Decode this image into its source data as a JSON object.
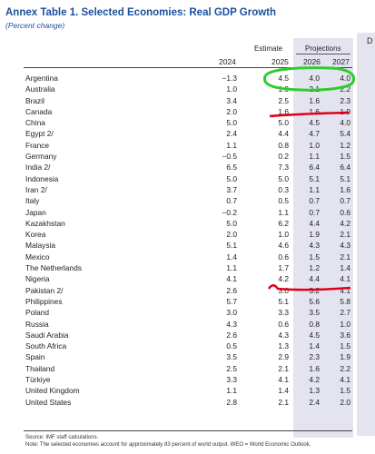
{
  "title": "Annex Table 1. Selected Economies: Real GDP Growth",
  "subtitle": "(Percent change)",
  "side_letter": "D",
  "header": {
    "estimate": "Estimate",
    "projections": "Projections",
    "years": [
      "2024",
      "2025",
      "2026",
      "2027"
    ]
  },
  "rows": [
    {
      "name": "Argentina",
      "values": [
        "−1.3",
        "4.5",
        "4.0",
        "4.0"
      ]
    },
    {
      "name": "Australia",
      "values": [
        "1.0",
        "1.9",
        "2.1",
        "2.2"
      ]
    },
    {
      "name": "Brazil",
      "values": [
        "3.4",
        "2.5",
        "1.6",
        "2.3"
      ]
    },
    {
      "name": "Canada",
      "values": [
        "2.0",
        "1.6",
        "1.6",
        "1.9"
      ]
    },
    {
      "name": "China",
      "values": [
        "5.0",
        "5.0",
        "4.5",
        "4.0"
      ]
    },
    {
      "name": "Egypt 2/",
      "values": [
        "2.4",
        "4.4",
        "4.7",
        "5.4"
      ]
    },
    {
      "name": "France",
      "values": [
        "1.1",
        "0.8",
        "1.0",
        "1.2"
      ]
    },
    {
      "name": "Germany",
      "values": [
        "−0.5",
        "0.2",
        "1.1",
        "1.5"
      ]
    },
    {
      "name": "India 2/",
      "values": [
        "6.5",
        "7.3",
        "6.4",
        "6.4"
      ]
    },
    {
      "name": "Indonesia",
      "values": [
        "5.0",
        "5.0",
        "5.1",
        "5.1"
      ]
    },
    {
      "name": "Iran 2/",
      "values": [
        "3.7",
        "0.3",
        "1.1",
        "1.6"
      ]
    },
    {
      "name": "Italy",
      "values": [
        "0.7",
        "0.5",
        "0.7",
        "0.7"
      ]
    },
    {
      "name": "Japan",
      "values": [
        "−0.2",
        "1.1",
        "0.7",
        "0.6"
      ]
    },
    {
      "name": "Kazakhstan",
      "values": [
        "5.0",
        "6.2",
        "4.4",
        "4.2"
      ]
    },
    {
      "name": "Korea",
      "values": [
        "2.0",
        "1.0",
        "1.9",
        "2.1"
      ]
    },
    {
      "name": "Malaysia",
      "values": [
        "5.1",
        "4.6",
        "4.3",
        "4.3"
      ]
    },
    {
      "name": "Mexico",
      "values": [
        "1.4",
        "0.6",
        "1.5",
        "2.1"
      ]
    },
    {
      "name": "The Netherlands",
      "values": [
        "1.1",
        "1.7",
        "1.2",
        "1.4"
      ]
    },
    {
      "name": "Nigeria",
      "values": [
        "4.1",
        "4.2",
        "4.4",
        "4.1"
      ]
    },
    {
      "name": "Pakistan 2/",
      "values": [
        "2.6",
        "3.0",
        "3.2",
        "4.1"
      ]
    },
    {
      "name": "Philippines",
      "values": [
        "5.7",
        "5.1",
        "5.6",
        "5.8"
      ]
    },
    {
      "name": "Poland",
      "values": [
        "3.0",
        "3.3",
        "3.5",
        "2.7"
      ]
    },
    {
      "name": "Russia",
      "values": [
        "4.3",
        "0.6",
        "0.8",
        "1.0"
      ]
    },
    {
      "name": "Saudi Arabia",
      "values": [
        "2.6",
        "4.3",
        "4.5",
        "3.6"
      ]
    },
    {
      "name": "South Africa",
      "values": [
        "0.5",
        "1.3",
        "1.4",
        "1.5"
      ]
    },
    {
      "name": "Spain",
      "values": [
        "3.5",
        "2.9",
        "2.3",
        "1.9"
      ]
    },
    {
      "name": "Thailand",
      "values": [
        "2.5",
        "2.1",
        "1.6",
        "2.2"
      ]
    },
    {
      "name": "Türkiye",
      "values": [
        "3.3",
        "4.1",
        "4.2",
        "4.1"
      ]
    },
    {
      "name": "United Kingdom",
      "values": [
        "1.1",
        "1.4",
        "1.3",
        "1.5"
      ]
    },
    {
      "name": "United States",
      "values": [
        "2.8",
        "2.1",
        "2.4",
        "2.0"
      ]
    }
  ],
  "source": "Source: IMF staff calculations.",
  "note": "Note: The selected economies account for approximately 83 percent of world output. WEO = World Economic Outlook.",
  "annotation_colors": {
    "green": "#2ecc2e",
    "red": "#e0001b"
  }
}
